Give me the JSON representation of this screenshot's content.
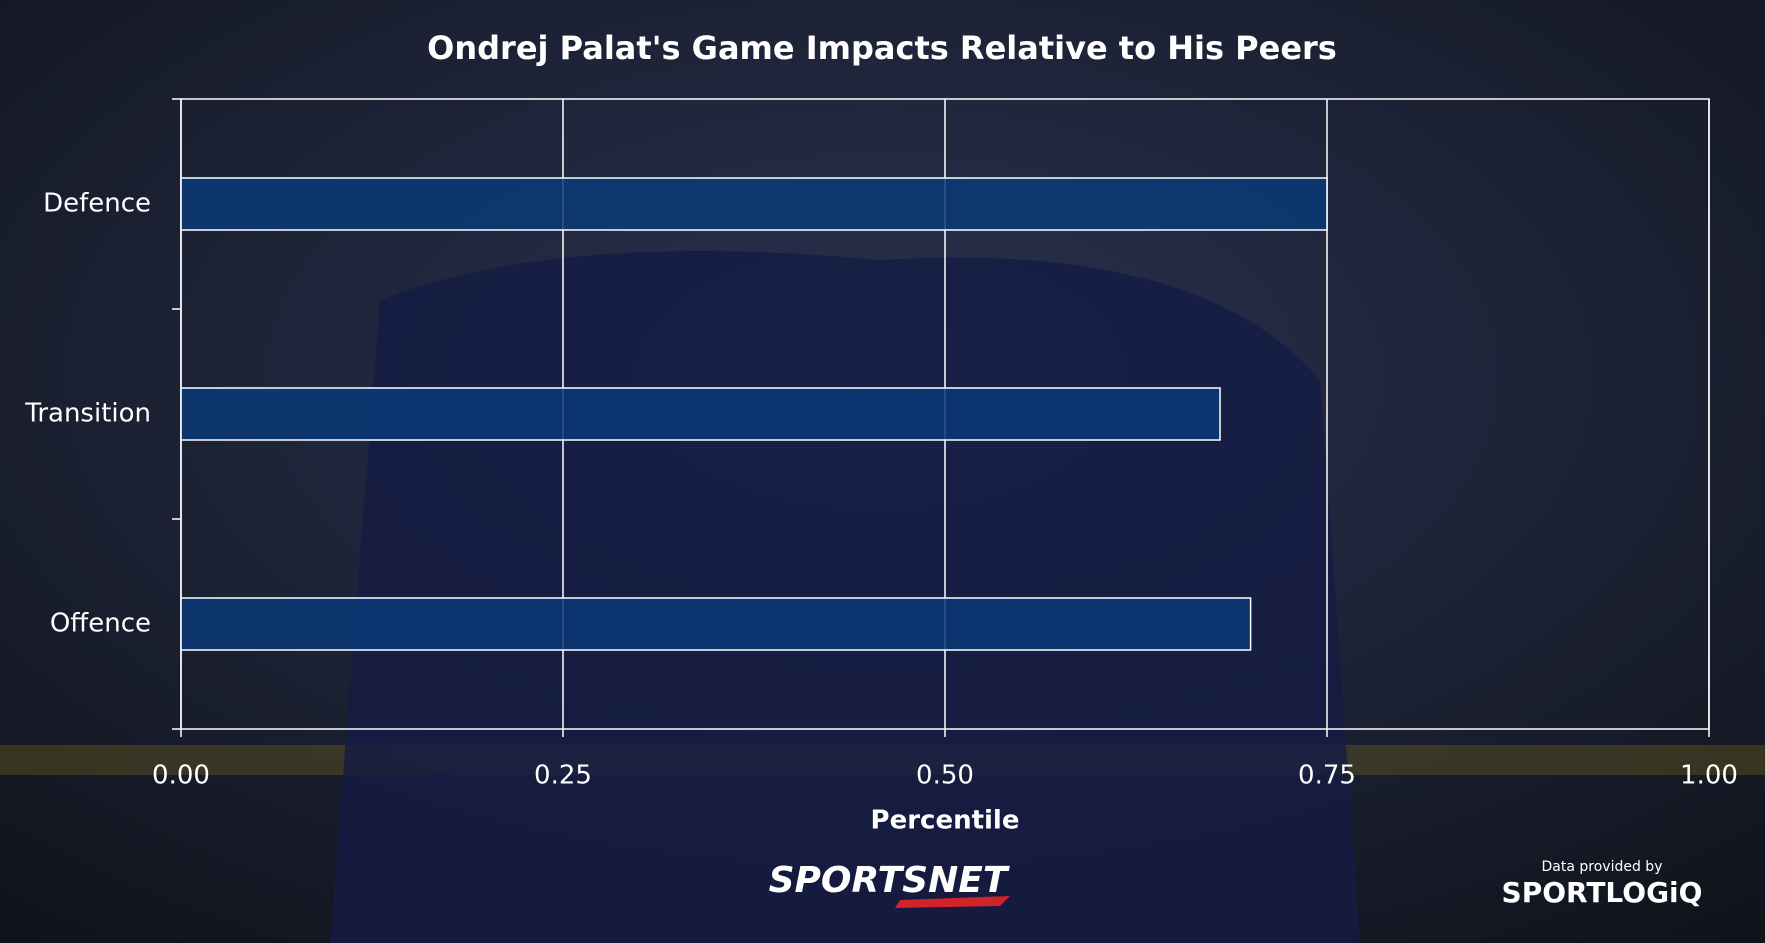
{
  "chart_data": {
    "type": "barh",
    "title": "Ondrej Palat's Game Impacts Relative to His Peers",
    "x_label": "Percentile",
    "categories": [
      "Defence",
      "Transition",
      "Offence"
    ],
    "values": [
      0.75,
      0.68,
      0.7
    ],
    "color": "#0b3a78",
    "xlim": [
      0,
      1
    ],
    "xticks": [
      {
        "value": 0,
        "label": "0.00"
      },
      {
        "value": 0.25,
        "label": "0.25"
      },
      {
        "value": 0.5,
        "label": "0.50"
      },
      {
        "value": 0.75,
        "label": "0.75"
      },
      {
        "value": 1,
        "label": "1.00"
      }
    ],
    "grid": true
  },
  "footer": {
    "brand": "SPORTSNET",
    "credit": "Data provided by",
    "provider": "SPORTLOGiQ"
  }
}
